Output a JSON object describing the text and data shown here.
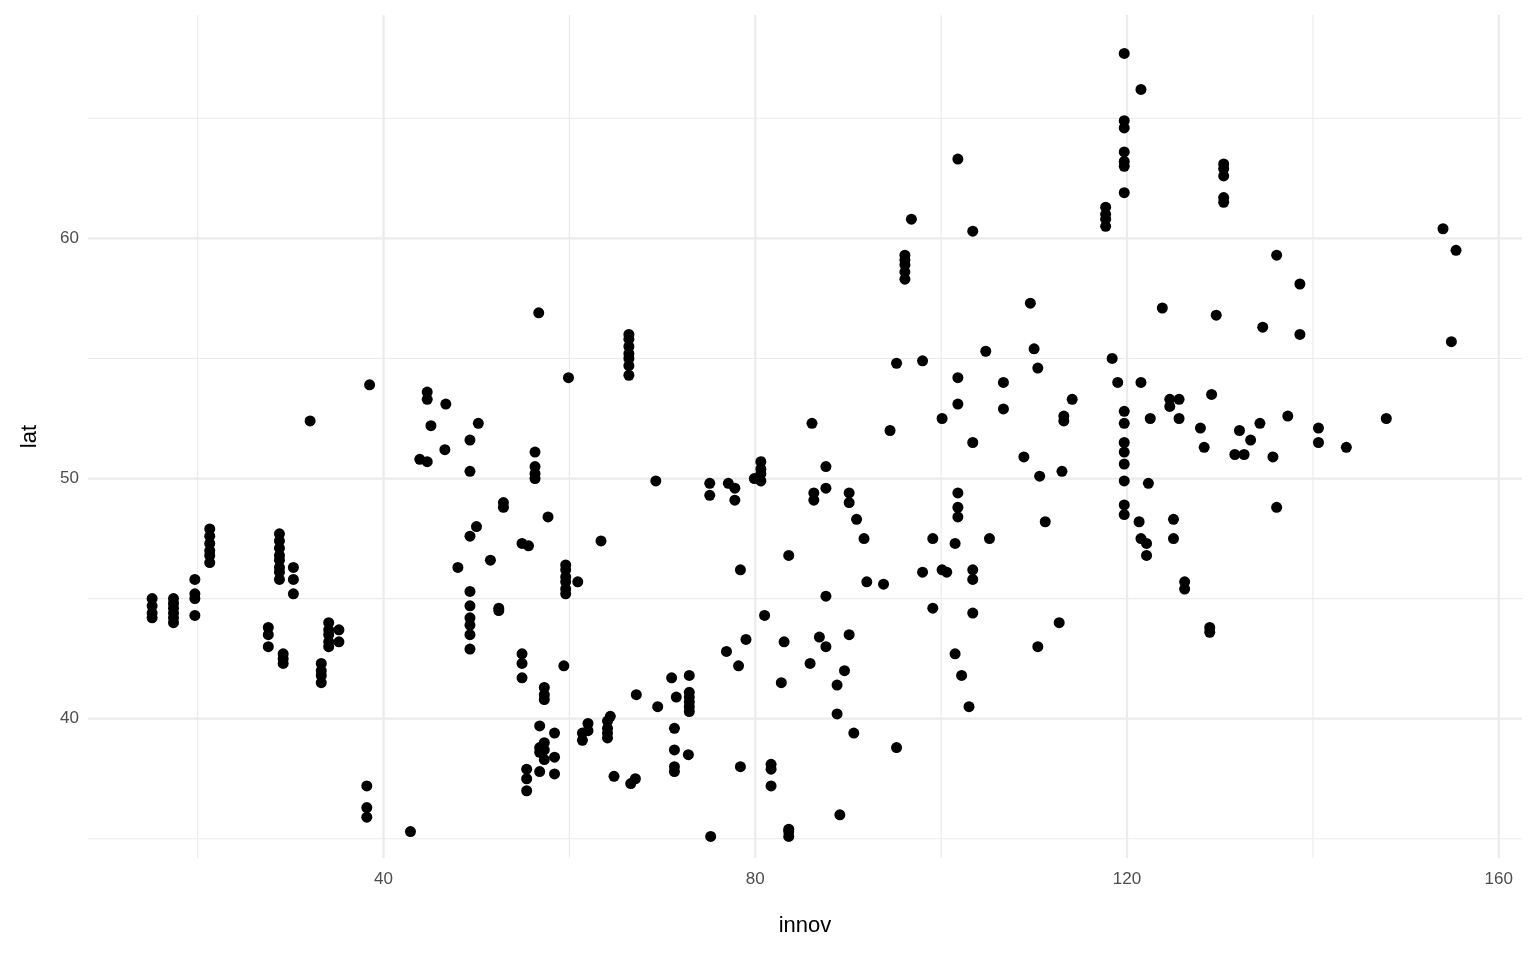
{
  "chart_data": {
    "type": "scatter",
    "xlabel": "innov",
    "ylabel": "lat",
    "grid": true,
    "marker": "circle",
    "xlim": [
      8.2,
      162.5
    ],
    "ylim": [
      34.2,
      69.3
    ],
    "xticks": [
      {
        "value": 20,
        "label": null
      },
      40,
      {
        "value": 60,
        "label": null
      },
      80,
      {
        "value": 100,
        "label": null
      },
      120,
      {
        "value": 140,
        "label": null
      },
      160
    ],
    "yticks": [
      {
        "value": 35,
        "label": null
      },
      40,
      {
        "value": 45,
        "label": null
      },
      50,
      {
        "value": 55,
        "label": null
      },
      60,
      {
        "value": 65,
        "label": null
      }
    ],
    "series": [
      {
        "color": "#000000",
        "x": [
          15.1,
          15.1,
          15.1,
          15.1,
          17.4,
          17.4,
          17.4,
          17.4,
          17.4,
          17.4,
          19.7,
          19.7,
          19.7,
          19.7,
          21.3,
          21.3,
          21.3,
          21.3,
          21.3,
          21.3,
          27.6,
          27.6,
          27.6,
          28.8,
          28.8,
          28.8,
          28.8,
          28.8,
          28.8,
          28.8,
          28.8,
          29.2,
          29.2,
          29.2,
          30.3,
          30.3,
          30.3,
          32.1,
          33.3,
          33.3,
          33.3,
          33.3,
          34.1,
          34.1,
          34.1,
          34.1,
          34.1,
          35.2,
          35.2,
          38.2,
          38.2,
          38.2,
          38.5,
          42.9,
          43.9,
          44.7,
          44.7,
          44.7,
          45.1,
          46.6,
          46.7,
          48.0,
          49.3,
          49.3,
          49.3,
          49.3,
          49.3,
          49.3,
          49.3,
          49.3,
          49.3,
          50.0,
          50.2,
          51.5,
          52.4,
          52.4,
          52.9,
          52.9,
          54.9,
          55.6,
          54.9,
          54.9,
          54.9,
          55.4,
          55.4,
          55.4,
          56.3,
          56.3,
          56.3,
          56.3,
          56.7,
          56.8,
          56.8,
          56.8,
          56.8,
          57.3,
          57.3,
          57.3,
          57.3,
          57.3,
          57.3,
          57.7,
          58.4,
          58.4,
          58.4,
          59.4,
          59.6,
          59.6,
          59.6,
          59.6,
          59.6,
          59.6,
          59.9,
          60.9,
          61.4,
          61.4,
          62.0,
          62.0,
          63.4,
          64.1,
          64.1,
          64.1,
          64.1,
          64.4,
          64.8,
          66.4,
          66.4,
          66.4,
          66.4,
          66.4,
          66.4,
          66.4,
          66.6,
          67.1,
          67.2,
          69.3,
          69.5,
          71.0,
          71.3,
          71.3,
          71.3,
          71.3,
          71.5,
          72.9,
          72.9,
          72.9,
          72.9,
          72.9,
          72.9,
          72.8,
          75.1,
          75.1,
          75.2,
          76.9,
          77.1,
          77.8,
          77.8,
          78.2,
          78.4,
          78.4,
          79.0,
          79.9,
          80.6,
          80.6,
          80.6,
          80.6,
          81.0,
          81.7,
          81.7,
          81.7,
          82.8,
          83.1,
          83.6,
          83.6,
          83.6,
          83.6,
          85.9,
          86.1,
          86.3,
          86.3,
          86.9,
          87.6,
          87.6,
          87.6,
          87.6,
          88.8,
          88.8,
          89.1,
          89.6,
          90.1,
          90.1,
          90.1,
          90.6,
          90.9,
          91.7,
          92.0,
          93.8,
          94.5,
          95.2,
          95.2,
          96.1,
          96.1,
          96.1,
          96.1,
          96.1,
          96.8,
          98.0,
          98.0,
          99.1,
          99.1,
          100.1,
          100.1,
          100.6,
          101.5,
          101.5,
          101.8,
          101.8,
          101.8,
          101.8,
          101.8,
          101.8,
          102.2,
          103.0,
          103.4,
          103.4,
          103.4,
          103.4,
          103.4,
          104.8,
          105.2,
          106.7,
          106.7,
          108.9,
          109.6,
          110.0,
          110.4,
          110.4,
          110.6,
          111.2,
          112.7,
          113.0,
          113.2,
          113.2,
          114.1,
          117.7,
          117.7,
          117.7,
          117.7,
          118.4,
          119.0,
          119.7,
          119.7,
          119.7,
          119.7,
          119.7,
          119.7,
          119.7,
          119.7,
          119.7,
          119.7,
          119.7,
          119.7,
          119.7,
          119.7,
          119.7,
          121.5,
          121.5,
          121.3,
          121.5,
          122.1,
          122.1,
          122.3,
          122.5,
          123.8,
          124.6,
          124.6,
          125.0,
          125.0,
          125.6,
          125.6,
          126.2,
          126.2,
          127.9,
          128.3,
          128.9,
          128.9,
          129.1,
          129.6,
          130.4,
          130.4,
          130.4,
          130.4,
          130.4,
          131.6,
          132.1,
          132.6,
          133.3,
          134.3,
          134.6,
          135.7,
          136.1,
          136.1,
          137.3,
          138.6,
          138.6,
          140.6,
          140.6,
          143.6,
          147.9,
          154.0,
          154.9,
          155.4
        ],
        "values": [
          45.0,
          44.7,
          44.4,
          44.2,
          45.0,
          44.8,
          44.6,
          44.4,
          44.2,
          44.0,
          45.8,
          45.2,
          45.0,
          44.3,
          47.9,
          47.6,
          47.3,
          47.0,
          46.8,
          46.5,
          43.8,
          43.5,
          43.0,
          47.7,
          47.4,
          47.1,
          46.8,
          46.6,
          46.3,
          46.1,
          45.8,
          42.7,
          42.5,
          42.3,
          46.3,
          45.8,
          45.2,
          52.4,
          42.3,
          42.0,
          41.8,
          41.5,
          44.0,
          43.7,
          43.5,
          43.2,
          43.0,
          43.7,
          43.2,
          37.2,
          36.3,
          35.9,
          53.9,
          35.3,
          50.8,
          53.6,
          53.3,
          50.7,
          52.2,
          51.2,
          53.1,
          46.3,
          51.6,
          50.3,
          47.6,
          45.3,
          44.7,
          44.2,
          43.9,
          43.5,
          42.9,
          48.0,
          52.3,
          46.6,
          44.6,
          44.5,
          48.8,
          49.0,
          47.3,
          47.2,
          42.7,
          42.3,
          41.7,
          37.9,
          37.5,
          37.0,
          51.1,
          50.5,
          50.2,
          50.0,
          56.9,
          39.7,
          38.8,
          38.6,
          37.8,
          41.3,
          41.0,
          40.8,
          39.0,
          38.7,
          38.3,
          48.4,
          39.4,
          38.4,
          37.7,
          42.2,
          46.4,
          46.2,
          45.9,
          45.7,
          45.4,
          45.2,
          54.2,
          45.7,
          39.1,
          39.4,
          39.8,
          39.5,
          47.4,
          39.9,
          39.6,
          39.4,
          39.2,
          40.1,
          37.6,
          56.0,
          55.8,
          55.5,
          55.2,
          55.0,
          54.7,
          54.3,
          37.3,
          37.5,
          41.0,
          49.9,
          40.5,
          41.7,
          39.6,
          38.7,
          38.0,
          37.8,
          40.9,
          41.8,
          41.1,
          40.9,
          40.7,
          40.5,
          40.3,
          38.5,
          49.8,
          49.3,
          35.1,
          42.8,
          49.8,
          49.6,
          49.1,
          42.2,
          46.2,
          38.0,
          43.3,
          50.0,
          50.7,
          50.4,
          50.2,
          49.9,
          44.3,
          38.1,
          37.9,
          37.2,
          41.5,
          43.2,
          46.8,
          35.4,
          35.3,
          35.1,
          42.3,
          52.3,
          49.4,
          49.1,
          43.4,
          50.5,
          49.6,
          45.1,
          43.0,
          41.4,
          40.2,
          36.0,
          42.0,
          49.4,
          49.0,
          43.5,
          39.4,
          48.3,
          47.5,
          45.7,
          45.6,
          52.0,
          54.8,
          38.8,
          59.3,
          59.1,
          58.9,
          58.6,
          58.3,
          60.8,
          54.9,
          46.1,
          47.5,
          44.6,
          46.2,
          52.5,
          46.1,
          47.3,
          42.7,
          54.2,
          53.1,
          63.3,
          49.4,
          48.8,
          48.4,
          41.8,
          40.5,
          60.3,
          51.5,
          46.2,
          45.8,
          44.4,
          55.3,
          47.5,
          54.0,
          52.9,
          50.9,
          57.3,
          55.4,
          54.6,
          43.0,
          50.1,
          48.2,
          44.0,
          50.3,
          52.6,
          52.4,
          53.3,
          61.3,
          61.0,
          60.8,
          60.5,
          55.0,
          54.0,
          67.7,
          64.9,
          64.6,
          63.6,
          63.2,
          63.0,
          61.9,
          52.8,
          52.3,
          51.5,
          51.1,
          50.6,
          49.9,
          48.9,
          48.5,
          66.2,
          54.0,
          48.2,
          47.5,
          47.3,
          46.8,
          49.8,
          52.5,
          57.1,
          53.3,
          53.0,
          48.3,
          47.5,
          52.5,
          53.3,
          45.7,
          45.4,
          52.1,
          51.3,
          43.8,
          43.6,
          53.5,
          56.8,
          63.1,
          62.9,
          62.6,
          61.7,
          61.5,
          51.0,
          52.0,
          51.0,
          51.6,
          52.3,
          56.3,
          50.9,
          59.3,
          48.8,
          52.6,
          58.1,
          56.0,
          52.1,
          51.5,
          51.3,
          52.5,
          60.4,
          55.7,
          59.5
        ]
      }
    ]
  }
}
